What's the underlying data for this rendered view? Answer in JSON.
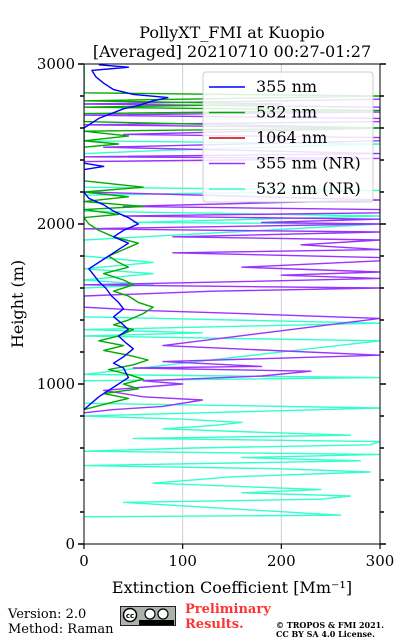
{
  "chart_data": {
    "type": "line",
    "title": "PollyXT_FMI at Kuopio",
    "subtitle": "[Averaged] 20210710 00:27-01:27",
    "xlabel": "Extinction Coefficient [Mm⁻¹]",
    "ylabel": "Height (m)",
    "xlim": [
      0,
      300
    ],
    "ylim": [
      0,
      3000
    ],
    "x_ticks": [
      "0",
      "100",
      "200",
      "300"
    ],
    "y_ticks": [
      "0",
      "1000",
      "2000",
      "3000"
    ],
    "grid": true,
    "legend_position": "top-right",
    "series": [
      {
        "name": "355 nm",
        "color": "#0000ff",
        "points": [
          [
            0,
            840
          ],
          [
            15,
            920
          ],
          [
            35,
            1000
          ],
          [
            45,
            1040
          ],
          [
            40,
            1100
          ],
          [
            30,
            1130
          ],
          [
            40,
            1170
          ],
          [
            50,
            1220
          ],
          [
            42,
            1260
          ],
          [
            35,
            1300
          ],
          [
            45,
            1340
          ],
          [
            38,
            1380
          ],
          [
            30,
            1420
          ],
          [
            40,
            1470
          ],
          [
            35,
            1510
          ],
          [
            28,
            1550
          ],
          [
            22,
            1600
          ],
          [
            15,
            1640
          ],
          [
            10,
            1680
          ],
          [
            5,
            1720
          ],
          [
            15,
            1760
          ],
          [
            25,
            1800
          ],
          [
            35,
            1840
          ],
          [
            45,
            1880
          ],
          [
            30,
            1920
          ],
          [
            40,
            1960
          ],
          [
            55,
            2000
          ],
          [
            45,
            2040
          ],
          [
            30,
            2080
          ],
          [
            20,
            2120
          ],
          [
            5,
            2160
          ],
          [
            0,
            2200
          ],
          [
            0,
            2340
          ],
          [
            20,
            2360
          ],
          [
            0,
            2380
          ],
          [
            0,
            2600
          ],
          [
            15,
            2660
          ],
          [
            40,
            2720
          ],
          [
            55,
            2740
          ],
          [
            70,
            2770
          ],
          [
            85,
            2790
          ],
          [
            50,
            2810
          ],
          [
            30,
            2840
          ],
          [
            20,
            2880
          ],
          [
            12,
            2920
          ],
          [
            8,
            2960
          ],
          [
            45,
            2980
          ],
          [
            15,
            2995
          ]
        ]
      },
      {
        "name": "532 nm",
        "color": "#00aa00",
        "points": [
          [
            0,
            840
          ],
          [
            25,
            880
          ],
          [
            45,
            910
          ],
          [
            20,
            940
          ],
          [
            55,
            970
          ],
          [
            40,
            1000
          ],
          [
            60,
            1030
          ],
          [
            45,
            1060
          ],
          [
            25,
            1090
          ],
          [
            50,
            1120
          ],
          [
            65,
            1150
          ],
          [
            45,
            1180
          ],
          [
            20,
            1210
          ],
          [
            40,
            1240
          ],
          [
            15,
            1270
          ],
          [
            35,
            1300
          ],
          [
            50,
            1340
          ],
          [
            30,
            1370
          ],
          [
            45,
            1400
          ],
          [
            60,
            1440
          ],
          [
            70,
            1480
          ],
          [
            55,
            1510
          ],
          [
            45,
            1550
          ],
          [
            30,
            1580
          ],
          [
            50,
            1620
          ],
          [
            40,
            1650
          ],
          [
            20,
            1690
          ],
          [
            45,
            1730
          ],
          [
            35,
            1760
          ],
          [
            25,
            1800
          ],
          [
            40,
            1840
          ],
          [
            55,
            1880
          ],
          [
            30,
            1920
          ],
          [
            15,
            1960
          ],
          [
            5,
            2000
          ],
          [
            0,
            2040
          ],
          [
            35,
            2060
          ],
          [
            0,
            2090
          ],
          [
            60,
            2110
          ],
          [
            0,
            2140
          ],
          [
            45,
            2170
          ],
          [
            0,
            2200
          ],
          [
            60,
            2230
          ],
          [
            0,
            2270
          ],
          [
            0,
            2480
          ],
          [
            35,
            2500
          ],
          [
            0,
            2520
          ],
          [
            45,
            2550
          ],
          [
            0,
            2580
          ],
          [
            300,
            2600
          ],
          [
            0,
            2640
          ],
          [
            0,
            2690
          ],
          [
            300,
            2710
          ],
          [
            0,
            2730
          ],
          [
            200,
            2750
          ],
          [
            0,
            2770
          ],
          [
            300,
            2800
          ],
          [
            0,
            2820
          ],
          [
            0,
            2990
          ]
        ]
      },
      {
        "name": "1064 nm",
        "color": "#cc0000",
        "points": []
      },
      {
        "name": "355 nm (NR)",
        "color": "#9933ff",
        "points": [
          [
            0,
            820
          ],
          [
            30,
            840
          ],
          [
            80,
            860
          ],
          [
            120,
            900
          ],
          [
            60,
            920
          ],
          [
            20,
            960
          ],
          [
            100,
            1000
          ],
          [
            60,
            1020
          ],
          [
            180,
            1050
          ],
          [
            230,
            1080
          ],
          [
            50,
            1100
          ],
          [
            180,
            1110
          ],
          [
            80,
            1140
          ],
          [
            300,
            1180
          ],
          [
            80,
            1240
          ],
          [
            300,
            1410
          ],
          [
            160,
            1440
          ],
          [
            60,
            1460
          ],
          [
            0,
            1480
          ],
          [
            0,
            1550
          ],
          [
            130,
            1580
          ],
          [
            300,
            1600
          ],
          [
            0,
            1620
          ],
          [
            160,
            1640
          ],
          [
            300,
            1660
          ],
          [
            200,
            1680
          ],
          [
            300,
            1700
          ],
          [
            160,
            1730
          ],
          [
            300,
            1770
          ],
          [
            300,
            1790
          ],
          [
            90,
            1820
          ],
          [
            300,
            1840
          ],
          [
            220,
            1870
          ],
          [
            300,
            1900
          ],
          [
            90,
            1920
          ],
          [
            300,
            1950
          ],
          [
            0,
            1970
          ],
          [
            300,
            2000
          ],
          [
            180,
            2010
          ],
          [
            300,
            2030
          ],
          [
            40,
            2050
          ],
          [
            300,
            2070
          ],
          [
            300,
            2090
          ],
          [
            40,
            2110
          ],
          [
            300,
            2150
          ],
          [
            0,
            2200
          ],
          [
            0,
            2390
          ],
          [
            300,
            2410
          ],
          [
            0,
            2420
          ],
          [
            300,
            2440
          ],
          [
            20,
            2480
          ],
          [
            300,
            2520
          ],
          [
            300,
            2540
          ],
          [
            40,
            2560
          ],
          [
            300,
            2600
          ],
          [
            0,
            2620
          ],
          [
            300,
            2640
          ],
          [
            300,
            2660
          ],
          [
            0,
            2680
          ],
          [
            300,
            2700
          ],
          [
            300,
            2730
          ],
          [
            0,
            2750
          ],
          [
            300,
            2780
          ]
        ]
      },
      {
        "name": "532 nm (NR)",
        "color": "#33ffcc",
        "points": [
          [
            0,
            170
          ],
          [
            260,
            180
          ],
          [
            40,
            260
          ],
          [
            240,
            280
          ],
          [
            270,
            300
          ],
          [
            160,
            320
          ],
          [
            240,
            340
          ],
          [
            70,
            380
          ],
          [
            150,
            420
          ],
          [
            290,
            450
          ],
          [
            200,
            470
          ],
          [
            0,
            490
          ],
          [
            280,
            520
          ],
          [
            160,
            540
          ],
          [
            300,
            560
          ],
          [
            0,
            580
          ],
          [
            110,
            600
          ],
          [
            290,
            620
          ],
          [
            300,
            640
          ],
          [
            50,
            660
          ],
          [
            270,
            680
          ],
          [
            170,
            700
          ],
          [
            80,
            720
          ],
          [
            130,
            740
          ],
          [
            160,
            760
          ],
          [
            100,
            780
          ],
          [
            0,
            800
          ],
          [
            300,
            850
          ],
          [
            0,
            880
          ],
          [
            0,
            1020
          ],
          [
            300,
            1040
          ],
          [
            0,
            1060
          ],
          [
            300,
            1270
          ],
          [
            0,
            1300
          ],
          [
            120,
            1320
          ],
          [
            0,
            1340
          ],
          [
            300,
            1380
          ],
          [
            0,
            1420
          ],
          [
            0,
            1600
          ],
          [
            70,
            1620
          ],
          [
            0,
            1650
          ],
          [
            70,
            1690
          ],
          [
            0,
            1720
          ],
          [
            70,
            1760
          ],
          [
            0,
            1800
          ],
          [
            0,
            1900
          ],
          [
            300,
            2000
          ],
          [
            50,
            2010
          ],
          [
            300,
            2050
          ],
          [
            0,
            2080
          ],
          [
            0,
            2180
          ],
          [
            300,
            2210
          ],
          [
            0,
            2230
          ],
          [
            0,
            2440
          ],
          [
            80,
            2460
          ],
          [
            300,
            2500
          ],
          [
            0,
            2520
          ],
          [
            0,
            2980
          ]
        ]
      }
    ]
  },
  "footer": {
    "version": "Version: 2.0",
    "method": "Method: Raman",
    "cc_badge": "cc by sa",
    "preliminary_line1": "Preliminary",
    "preliminary_line2": "Results.",
    "copyright_line1": "© TROPOS & FMI 2021.",
    "copyright_line2": "CC BY SA 4.0 License."
  }
}
